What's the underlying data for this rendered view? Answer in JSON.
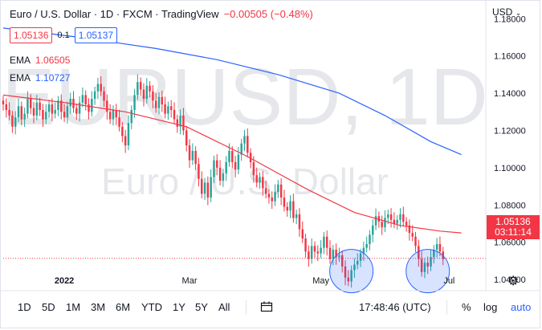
{
  "header": {
    "title": "Euro / U.S. Dollar · 1D · FXCM · TradingView",
    "change": "−0.00505 (−0.48%)"
  },
  "prices": {
    "bid": "1.05136",
    "spread": "0.1",
    "ask": "1.05137"
  },
  "indicators": [
    {
      "label": "EMA",
      "value": "1.06505",
      "color": "#f23645"
    },
    {
      "label": "EMA",
      "value": "1.10727",
      "color": "#2962ff"
    }
  ],
  "watermark": {
    "symbol": "EURUSD, 1D",
    "name": "Euro / U.S. Dollar"
  },
  "currency": "USD",
  "last_price": {
    "value": "1.05136",
    "countdown": "03:11:14"
  },
  "toolbar": {
    "timeframes": [
      "1D",
      "5D",
      "1M",
      "3M",
      "6M",
      "YTD",
      "1Y",
      "5Y",
      "All"
    ],
    "calendar_icon": "calendar-range-icon",
    "clock": "17:48:46 (UTC)",
    "percent": "%",
    "log": "log",
    "auto": "auto"
  },
  "colors": {
    "up": "#26a69a",
    "down": "#f23645",
    "ema_fast": "#f23645",
    "ema_slow": "#2962ff",
    "circle": "#2962ff"
  },
  "chart_data": {
    "type": "candlestick",
    "symbol": "EURUSD",
    "interval": "1D",
    "y_ticks": [
      "1.18000",
      "1.16000",
      "1.14000",
      "1.12000",
      "1.10000",
      "1.08000",
      "1.06000",
      "1.04000"
    ],
    "ylim": [
      1.034,
      1.184
    ],
    "x_ticks": [
      {
        "label": "2022",
        "index": 20
      },
      {
        "label": "Mar",
        "index": 61
      },
      {
        "label": "May",
        "index": 104
      },
      {
        "label": "Jul",
        "index": 146
      }
    ],
    "index_range": [
      0,
      158
    ],
    "close": [
      1.134,
      1.131,
      1.128,
      1.122,
      1.127,
      1.133,
      1.126,
      1.129,
      1.137,
      1.132,
      1.128,
      1.135,
      1.131,
      1.126,
      1.13,
      1.134,
      1.129,
      1.131,
      1.136,
      1.13,
      1.127,
      1.133,
      1.137,
      1.132,
      1.129,
      1.135,
      1.139,
      1.134,
      1.13,
      1.137,
      1.141,
      1.145,
      1.141,
      1.136,
      1.13,
      1.126,
      1.131,
      1.127,
      1.122,
      1.117,
      1.112,
      1.124,
      1.131,
      1.139,
      1.146,
      1.142,
      1.137,
      1.144,
      1.141,
      1.136,
      1.132,
      1.138,
      1.134,
      1.129,
      1.133,
      1.131,
      1.126,
      1.122,
      1.128,
      1.12,
      1.112,
      1.104,
      1.109,
      1.102,
      1.094,
      1.086,
      1.092,
      1.084,
      1.095,
      1.104,
      1.1,
      1.093,
      1.097,
      1.103,
      1.109,
      1.103,
      1.099,
      1.107,
      1.113,
      1.117,
      1.108,
      1.103,
      1.096,
      1.092,
      1.095,
      1.089,
      1.086,
      1.084,
      1.082,
      1.087,
      1.091,
      1.084,
      1.079,
      1.077,
      1.082,
      1.073,
      1.075,
      1.067,
      1.062,
      1.055,
      1.051,
      1.058,
      1.055,
      1.054,
      1.057,
      1.063,
      1.057,
      1.051,
      1.056,
      1.052,
      1.053,
      1.047,
      1.041,
      1.039,
      1.045,
      1.048,
      1.05,
      1.054,
      1.057,
      1.059,
      1.064,
      1.069,
      1.074,
      1.071,
      1.068,
      1.073,
      1.075,
      1.072,
      1.07,
      1.072,
      1.075,
      1.071,
      1.069,
      1.065,
      1.063,
      1.058,
      1.051,
      1.044,
      1.049,
      1.047,
      1.052,
      1.056,
      1.059,
      1.055,
      1.051
    ],
    "series": [
      {
        "name": "EMA",
        "value": 1.06505,
        "points": [
          [
            0,
            1.139
          ],
          [
            20,
            1.135
          ],
          [
            40,
            1.13
          ],
          [
            60,
            1.122
          ],
          [
            80,
            1.106
          ],
          [
            100,
            1.088
          ],
          [
            115,
            1.076
          ],
          [
            130,
            1.069
          ],
          [
            143,
            1.066
          ],
          [
            150,
            1.065
          ]
        ]
      },
      {
        "name": "EMA",
        "value": 1.10727,
        "points": [
          [
            0,
            1.175
          ],
          [
            25,
            1.17
          ],
          [
            50,
            1.164
          ],
          [
            70,
            1.158
          ],
          [
            90,
            1.15
          ],
          [
            110,
            1.14
          ],
          [
            125,
            1.128
          ],
          [
            140,
            1.114
          ],
          [
            150,
            1.107
          ]
        ]
      }
    ],
    "last": 1.05136,
    "annotations": [
      {
        "type": "circle",
        "index": 114,
        "price": 1.0445
      },
      {
        "type": "circle",
        "index": 139,
        "price": 1.0445
      }
    ]
  }
}
